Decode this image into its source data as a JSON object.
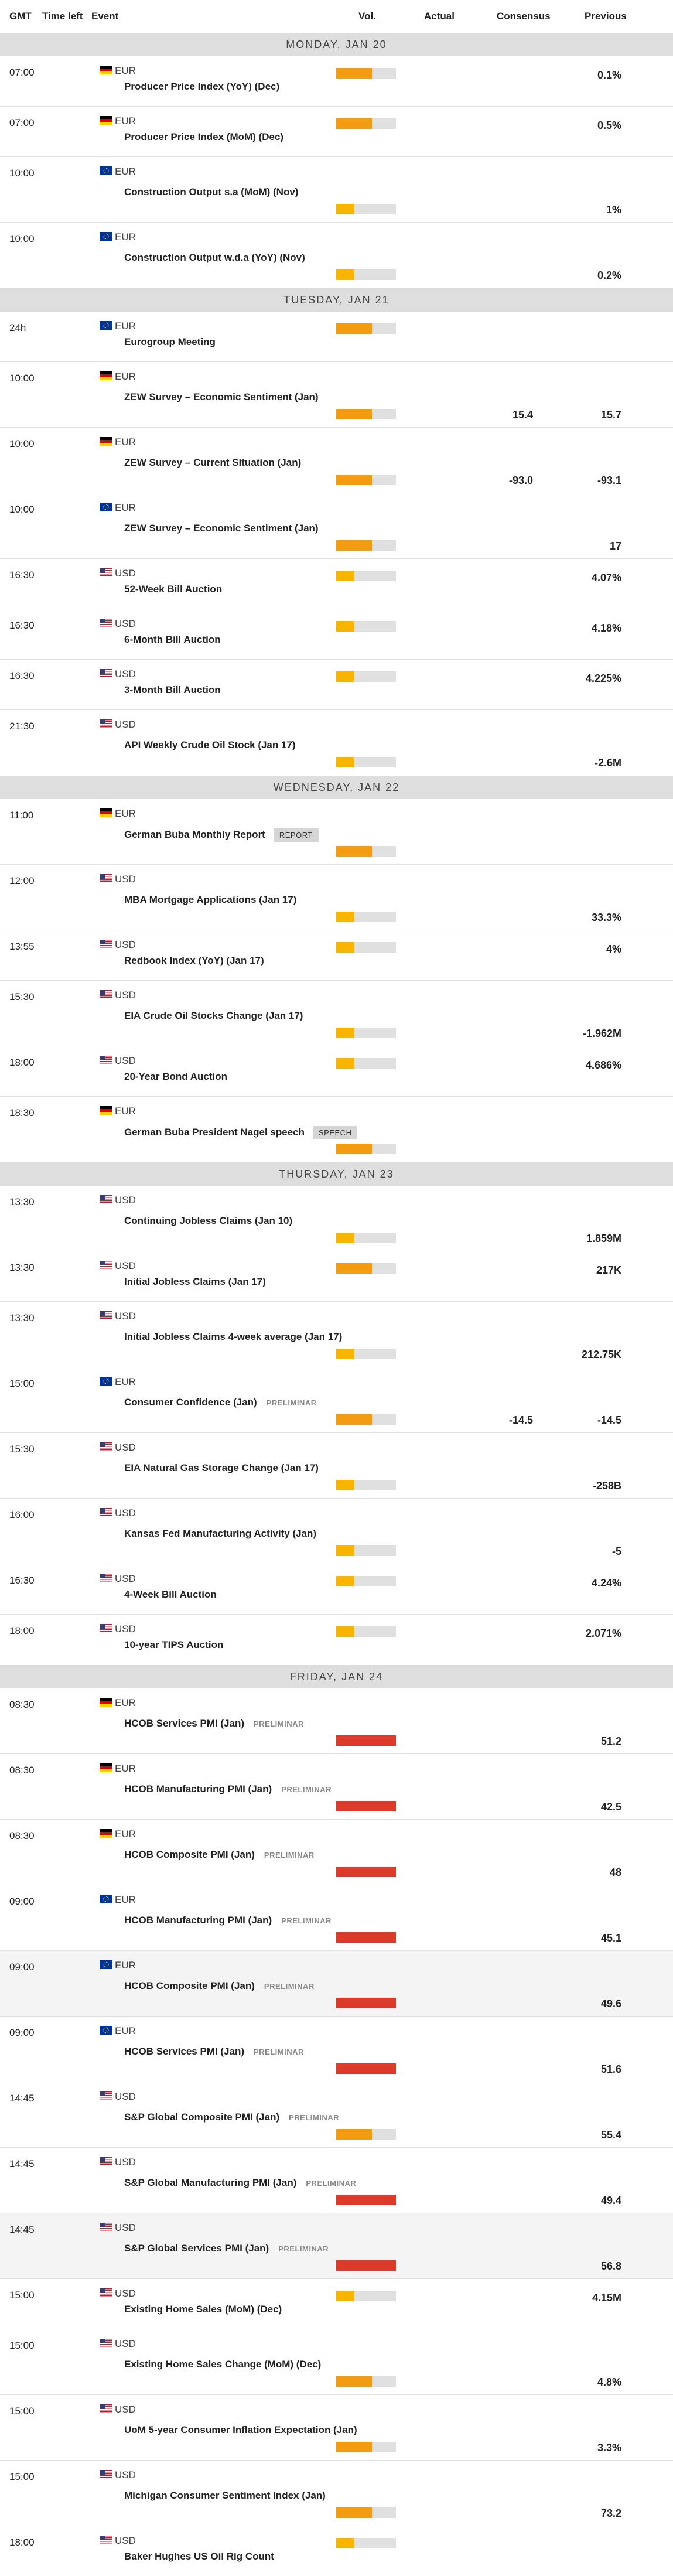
{
  "colors": {
    "vol_low": "#f7b500",
    "vol_medium": "#f39c12",
    "vol_high": "#dd3b29",
    "vol_track": "#e0e0e0"
  },
  "header": {
    "gmt": "GMT",
    "time_left": "Time left",
    "event": "Event",
    "vol": "Vol.",
    "actual": "Actual",
    "consensus": "Consensus",
    "previous": "Previous"
  },
  "days": [
    {
      "label": "MONDAY, JAN 20",
      "events": [
        {
          "time": "07:00",
          "country": "de",
          "currency": "EUR",
          "name": "Producer Price Index (YoY) (Dec)",
          "vol": "medium",
          "vol_level": 0.6,
          "consensus": "",
          "previous": "0.1%",
          "compact": true
        },
        {
          "time": "07:00",
          "country": "de",
          "currency": "EUR",
          "name": "Producer Price Index (MoM) (Dec)",
          "vol": "medium",
          "vol_level": 0.6,
          "consensus": "",
          "previous": "0.5%",
          "compact": true
        },
        {
          "time": "10:00",
          "country": "eu",
          "currency": "EUR",
          "name": "Construction Output s.a (MoM) (Nov)",
          "vol": "low",
          "vol_level": 0.3,
          "consensus": "",
          "previous": "1%"
        },
        {
          "time": "10:00",
          "country": "eu",
          "currency": "EUR",
          "name": "Construction Output w.d.a (YoY) (Nov)",
          "vol": "low",
          "vol_level": 0.3,
          "consensus": "",
          "previous": "0.2%",
          "last": true
        }
      ]
    },
    {
      "label": "TUESDAY, JAN 21",
      "events": [
        {
          "time": "24h",
          "country": "eu",
          "currency": "EUR",
          "name": "Eurogroup Meeting",
          "vol": "medium",
          "vol_level": 0.6,
          "consensus": "",
          "previous": "",
          "compact": true
        },
        {
          "time": "10:00",
          "country": "de",
          "currency": "EUR",
          "name": "ZEW Survey – Economic Sentiment (Jan)",
          "vol": "medium",
          "vol_level": 0.6,
          "consensus": "15.4",
          "previous": "15.7"
        },
        {
          "time": "10:00",
          "country": "de",
          "currency": "EUR",
          "name": "ZEW Survey – Current Situation (Jan)",
          "vol": "medium",
          "vol_level": 0.6,
          "consensus": "-93.0",
          "previous": "-93.1"
        },
        {
          "time": "10:00",
          "country": "eu",
          "currency": "EUR",
          "name": "ZEW Survey – Economic Sentiment (Jan)",
          "vol": "medium",
          "vol_level": 0.6,
          "consensus": "",
          "previous": "17"
        },
        {
          "time": "16:30",
          "country": "us",
          "currency": "USD",
          "name": "52-Week Bill Auction",
          "vol": "low",
          "vol_level": 0.3,
          "consensus": "",
          "previous": "4.07%",
          "compact": true
        },
        {
          "time": "16:30",
          "country": "us",
          "currency": "USD",
          "name": "6-Month Bill Auction",
          "vol": "low",
          "vol_level": 0.3,
          "consensus": "",
          "previous": "4.18%",
          "compact": true
        },
        {
          "time": "16:30",
          "country": "us",
          "currency": "USD",
          "name": "3-Month Bill Auction",
          "vol": "low",
          "vol_level": 0.3,
          "consensus": "",
          "previous": "4.225%",
          "compact": true
        },
        {
          "time": "21:30",
          "country": "us",
          "currency": "USD",
          "name": "API Weekly Crude Oil Stock (Jan 17)",
          "vol": "low",
          "vol_level": 0.3,
          "consensus": "",
          "previous": "-2.6M",
          "last": true
        }
      ]
    },
    {
      "label": "WEDNESDAY, JAN 22",
      "events": [
        {
          "time": "11:00",
          "country": "de",
          "currency": "EUR",
          "name": "German Buba Monthly Report",
          "badge": "REPORT",
          "vol": "medium",
          "vol_level": 0.6,
          "consensus": "",
          "previous": ""
        },
        {
          "time": "12:00",
          "country": "us",
          "currency": "USD",
          "name": "MBA Mortgage Applications (Jan 17)",
          "vol": "low",
          "vol_level": 0.3,
          "consensus": "",
          "previous": "33.3%"
        },
        {
          "time": "13:55",
          "country": "us",
          "currency": "USD",
          "name": "Redbook Index (YoY) (Jan 17)",
          "vol": "low",
          "vol_level": 0.3,
          "consensus": "",
          "previous": "4%",
          "compact": true
        },
        {
          "time": "15:30",
          "country": "us",
          "currency": "USD",
          "name": "EIA Crude Oil Stocks Change (Jan 17)",
          "vol": "low",
          "vol_level": 0.3,
          "consensus": "",
          "previous": "-1.962M"
        },
        {
          "time": "18:00",
          "country": "us",
          "currency": "USD",
          "name": "20-Year Bond Auction",
          "vol": "low",
          "vol_level": 0.3,
          "consensus": "",
          "previous": "4.686%",
          "compact": true
        },
        {
          "time": "18:30",
          "country": "de",
          "currency": "EUR",
          "name": "German Buba President Nagel speech",
          "badge": "SPEECH",
          "vol": "medium",
          "vol_level": 0.6,
          "consensus": "",
          "previous": "",
          "last": true
        }
      ]
    },
    {
      "label": "THURSDAY, JAN 23",
      "events": [
        {
          "time": "13:30",
          "country": "us",
          "currency": "USD",
          "name": "Continuing Jobless Claims (Jan 10)",
          "vol": "low",
          "vol_level": 0.3,
          "consensus": "",
          "previous": "1.859M"
        },
        {
          "time": "13:30",
          "country": "us",
          "currency": "USD",
          "name": "Initial Jobless Claims (Jan 17)",
          "vol": "medium",
          "vol_level": 0.6,
          "consensus": "",
          "previous": "217K",
          "compact": true
        },
        {
          "time": "13:30",
          "country": "us",
          "currency": "USD",
          "name": "Initial Jobless Claims 4-week average (Jan 17)",
          "vol": "low",
          "vol_level": 0.3,
          "consensus": "",
          "previous": "212.75K"
        },
        {
          "time": "15:00",
          "country": "eu",
          "currency": "EUR",
          "name": "Consumer Confidence (Jan)",
          "tag": "PRELIMINAR",
          "vol": "medium",
          "vol_level": 0.6,
          "consensus": "-14.5",
          "previous": "-14.5"
        },
        {
          "time": "15:30",
          "country": "us",
          "currency": "USD",
          "name": "EIA Natural Gas Storage Change (Jan 17)",
          "vol": "low",
          "vol_level": 0.3,
          "consensus": "",
          "previous": "-258B"
        },
        {
          "time": "16:00",
          "country": "us",
          "currency": "USD",
          "name": "Kansas Fed Manufacturing Activity (Jan)",
          "vol": "low",
          "vol_level": 0.3,
          "consensus": "",
          "previous": "-5"
        },
        {
          "time": "16:30",
          "country": "us",
          "currency": "USD",
          "name": "4-Week Bill Auction",
          "vol": "low",
          "vol_level": 0.3,
          "consensus": "",
          "previous": "4.24%",
          "compact": true
        },
        {
          "time": "18:00",
          "country": "us",
          "currency": "USD",
          "name": "10-year TIPS Auction",
          "vol": "low",
          "vol_level": 0.3,
          "consensus": "",
          "previous": "2.071%",
          "compact": true,
          "last": true
        }
      ]
    },
    {
      "label": "FRIDAY, JAN 24",
      "events": [
        {
          "time": "08:30",
          "country": "de",
          "currency": "EUR",
          "name": "HCOB Services PMI (Jan)",
          "tag": "PRELIMINAR",
          "vol": "high",
          "vol_level": 1,
          "consensus": "",
          "previous": "51.2"
        },
        {
          "time": "08:30",
          "country": "de",
          "currency": "EUR",
          "name": "HCOB Manufacturing PMI (Jan)",
          "tag": "PRELIMINAR",
          "vol": "high",
          "vol_level": 1,
          "consensus": "",
          "previous": "42.5"
        },
        {
          "time": "08:30",
          "country": "de",
          "currency": "EUR",
          "name": "HCOB Composite PMI (Jan)",
          "tag": "PRELIMINAR",
          "vol": "high",
          "vol_level": 1,
          "consensus": "",
          "previous": "48"
        },
        {
          "time": "09:00",
          "country": "eu",
          "currency": "EUR",
          "name": "HCOB Manufacturing PMI (Jan)",
          "tag": "PRELIMINAR",
          "vol": "high",
          "vol_level": 1,
          "consensus": "",
          "previous": "45.1"
        },
        {
          "time": "09:00",
          "country": "eu",
          "currency": "EUR",
          "name": "HCOB Composite PMI (Jan)",
          "tag": "PRELIMINAR",
          "vol": "high",
          "vol_level": 1,
          "consensus": "",
          "previous": "49.6",
          "alt": true
        },
        {
          "time": "09:00",
          "country": "eu",
          "currency": "EUR",
          "name": "HCOB Services PMI (Jan)",
          "tag": "PRELIMINAR",
          "vol": "high",
          "vol_level": 1,
          "consensus": "",
          "previous": "51.6"
        },
        {
          "time": "14:45",
          "country": "us",
          "currency": "USD",
          "name": "S&P Global Composite PMI (Jan)",
          "tag": "PRELIMINAR",
          "vol": "medium",
          "vol_level": 0.6,
          "consensus": "",
          "previous": "55.4"
        },
        {
          "time": "14:45",
          "country": "us",
          "currency": "USD",
          "name": "S&P Global Manufacturing PMI (Jan)",
          "tag": "PRELIMINAR",
          "vol": "high",
          "vol_level": 1,
          "consensus": "",
          "previous": "49.4"
        },
        {
          "time": "14:45",
          "country": "us",
          "currency": "USD",
          "name": "S&P Global Services PMI (Jan)",
          "tag": "PRELIMINAR",
          "vol": "high",
          "vol_level": 1,
          "consensus": "",
          "previous": "56.8",
          "alt": true
        },
        {
          "time": "15:00",
          "country": "us",
          "currency": "USD",
          "name": "Existing Home Sales (MoM) (Dec)",
          "vol": "low",
          "vol_level": 0.3,
          "consensus": "",
          "previous": "4.15M",
          "compact": true
        },
        {
          "time": "15:00",
          "country": "us",
          "currency": "USD",
          "name": "Existing Home Sales Change (MoM) (Dec)",
          "vol": "medium",
          "vol_level": 0.6,
          "consensus": "",
          "previous": "4.8%"
        },
        {
          "time": "15:00",
          "country": "us",
          "currency": "USD",
          "name": "UoM 5-year Consumer Inflation Expectation (Jan)",
          "vol": "medium",
          "vol_level": 0.6,
          "consensus": "",
          "previous": "3.3%"
        },
        {
          "time": "15:00",
          "country": "us",
          "currency": "USD",
          "name": "Michigan Consumer Sentiment Index (Jan)",
          "vol": "medium",
          "vol_level": 0.6,
          "consensus": "",
          "previous": "73.2"
        },
        {
          "time": "18:00",
          "country": "us",
          "currency": "USD",
          "name": "Baker Hughes US Oil Rig Count",
          "vol": "low",
          "vol_level": 0.3,
          "consensus": "",
          "previous": "",
          "compact": true,
          "last": true
        }
      ]
    }
  ]
}
